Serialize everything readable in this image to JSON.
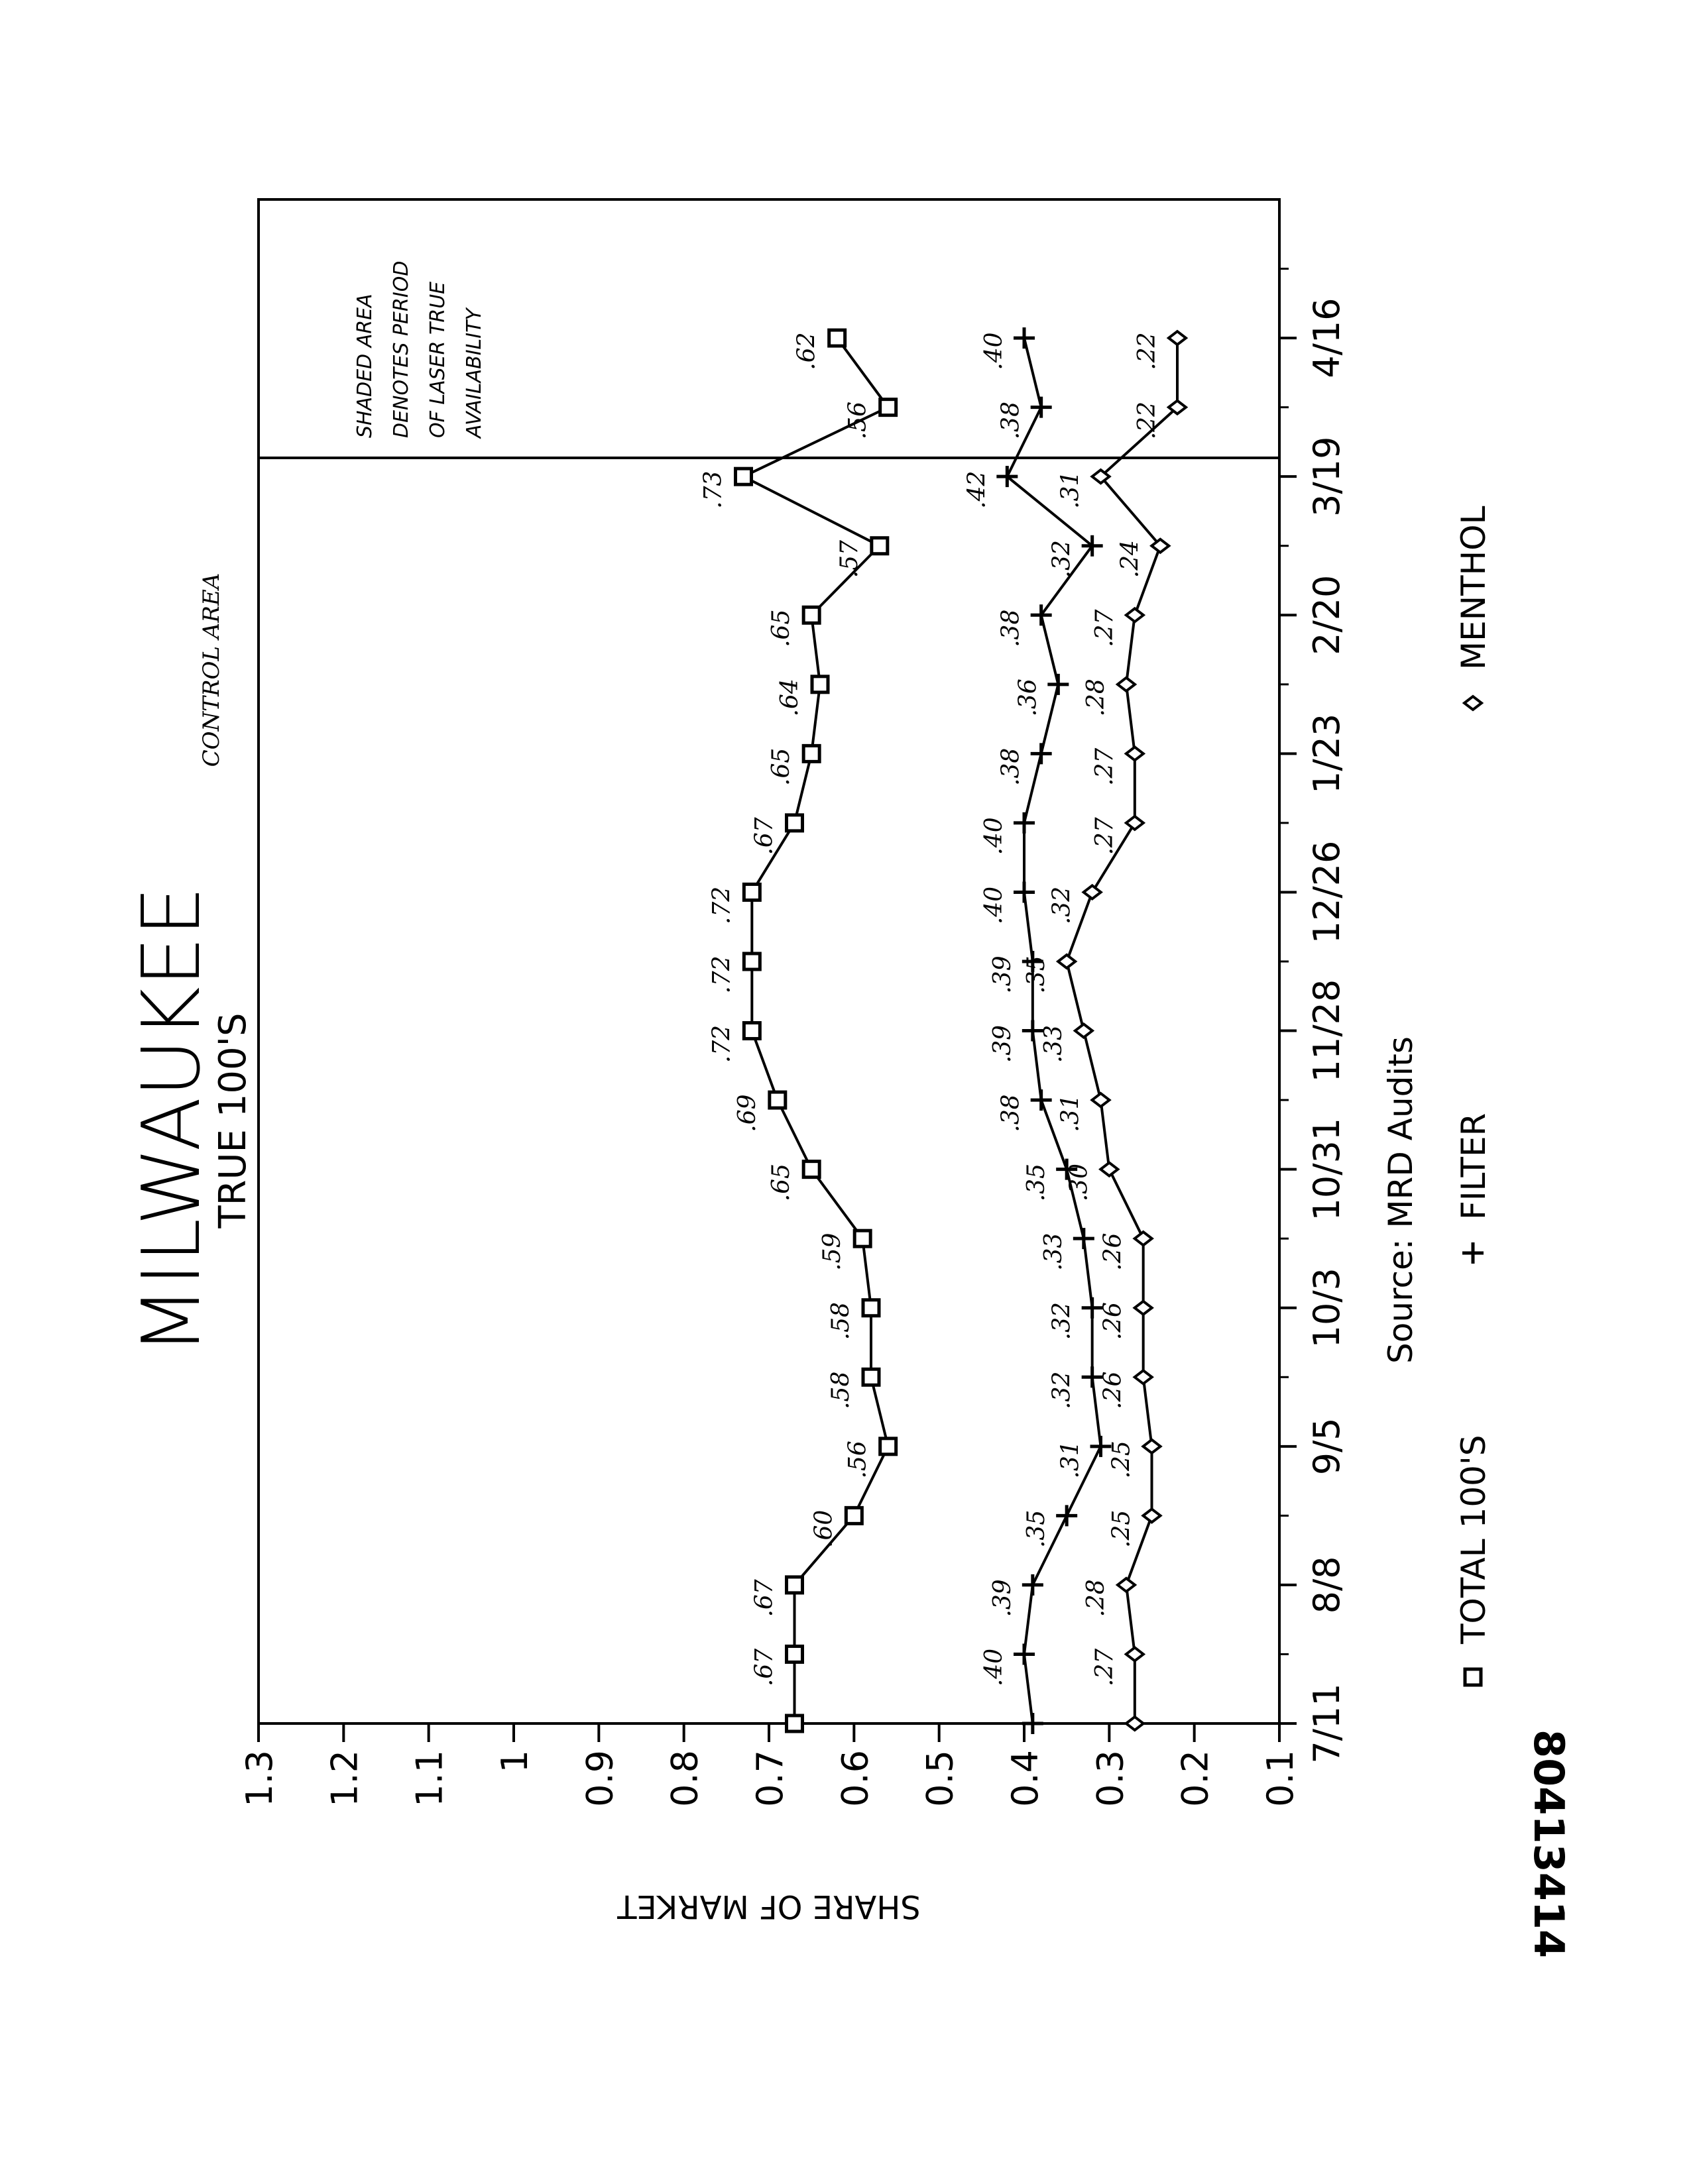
{
  "chart_data": {
    "type": "line",
    "title": "MILWAUKEE",
    "subtitle": "TRUE 100'S",
    "corner_note": "CONTROL AREA",
    "source": "Source: MRD Audits",
    "ylabel": "SHARE OF MARKET",
    "xlabel": "",
    "ylim": [
      0.1,
      1.3
    ],
    "y_ticks": [
      "1.3",
      "1.2",
      "1.1",
      "1",
      "0.9",
      "0.8",
      "0.7",
      "0.6",
      "0.5",
      "0.4",
      "0.3",
      "0.2",
      "0.1"
    ],
    "x_ticks": [
      "7/11",
      "8/8",
      "9/5",
      "10/3",
      "10/31",
      "11/28",
      "12/26",
      "1/23",
      "2/20",
      "3/19",
      "4/16"
    ],
    "grid": false,
    "legend_position": "bottom",
    "shaded_note": [
      "SHADED AREA",
      "DENOTES PERIOD",
      "OF LASER TRUE",
      "AVAILABILITY"
    ],
    "doc_number": "80413414",
    "series": [
      {
        "name": "TOTAL 100'S",
        "marker": "square",
        "points": [
          [
            0,
            0.67
          ],
          [
            1,
            0.67
          ],
          [
            2,
            0.67
          ],
          [
            3,
            0.6
          ],
          [
            4,
            0.56
          ],
          [
            5,
            0.58
          ],
          [
            6,
            0.58
          ],
          [
            7,
            0.59
          ],
          [
            8,
            0.65
          ],
          [
            9,
            0.69
          ],
          [
            10,
            0.72
          ],
          [
            11,
            0.72
          ],
          [
            12,
            0.72
          ],
          [
            13,
            0.67
          ],
          [
            14,
            0.65
          ],
          [
            15,
            0.64
          ],
          [
            16,
            0.65
          ],
          [
            17,
            0.57
          ],
          [
            18,
            0.73
          ],
          [
            19,
            0.56
          ],
          [
            20,
            0.62
          ]
        ],
        "labels": [
          "",
          ".67",
          ".67",
          ".60",
          ".56",
          ".58",
          ".58",
          ".59",
          ".65",
          ".69",
          ".72",
          ".72",
          ".72",
          ".67",
          ".65",
          ".64",
          ".65",
          ".57",
          ".73",
          ".56",
          ".62"
        ]
      },
      {
        "name": "FILTER",
        "marker": "plus",
        "points": [
          [
            0,
            0.39
          ],
          [
            1,
            0.4
          ],
          [
            2,
            0.39
          ],
          [
            3,
            0.35
          ],
          [
            4,
            0.31
          ],
          [
            5,
            0.32
          ],
          [
            6,
            0.32
          ],
          [
            7,
            0.33
          ],
          [
            8,
            0.35
          ],
          [
            9,
            0.38
          ],
          [
            10,
            0.39
          ],
          [
            11,
            0.39
          ],
          [
            12,
            0.4
          ],
          [
            13,
            0.4
          ],
          [
            14,
            0.38
          ],
          [
            15,
            0.36
          ],
          [
            16,
            0.38
          ],
          [
            17,
            0.32
          ],
          [
            18,
            0.42
          ],
          [
            19,
            0.38
          ],
          [
            20,
            0.4
          ]
        ],
        "labels": [
          "",
          ".40",
          ".39",
          ".35",
          ".31",
          ".32",
          ".32",
          ".33",
          ".35",
          ".38",
          ".39",
          ".39",
          ".40",
          ".40",
          ".38",
          ".36",
          ".38",
          ".32",
          ".42",
          ".38",
          ".40"
        ]
      },
      {
        "name": "MENTHOL",
        "marker": "diamond",
        "points": [
          [
            0,
            0.27
          ],
          [
            1,
            0.27
          ],
          [
            2,
            0.28
          ],
          [
            3,
            0.25
          ],
          [
            4,
            0.25
          ],
          [
            5,
            0.26
          ],
          [
            6,
            0.26
          ],
          [
            7,
            0.26
          ],
          [
            8,
            0.3
          ],
          [
            9,
            0.31
          ],
          [
            10,
            0.33
          ],
          [
            11,
            0.35
          ],
          [
            12,
            0.32
          ],
          [
            13,
            0.27
          ],
          [
            14,
            0.27
          ],
          [
            15,
            0.28
          ],
          [
            16,
            0.27
          ],
          [
            17,
            0.24
          ],
          [
            18,
            0.31
          ],
          [
            19,
            0.22
          ],
          [
            20,
            0.22
          ]
        ],
        "labels": [
          "",
          ".27",
          ".28",
          ".25",
          ".25",
          ".26",
          ".26",
          ".26",
          ".30",
          ".31",
          ".33",
          ".35",
          ".32",
          ".27",
          ".27",
          ".28",
          ".27",
          ".24",
          ".31",
          ".22",
          ".22"
        ]
      }
    ]
  }
}
